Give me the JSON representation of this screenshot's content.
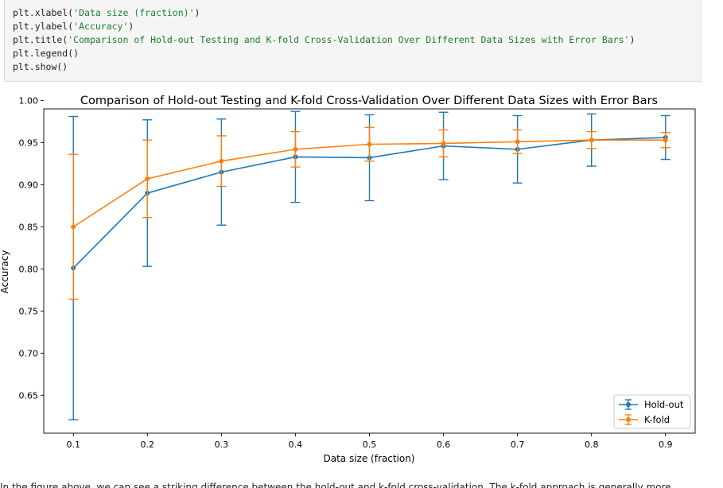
{
  "code": {
    "lines": [
      {
        "prefix": "plt.xlabel(",
        "arg": "'Data size (fraction)'",
        "suffix": ")"
      },
      {
        "prefix": "plt.ylabel(",
        "arg": "'Accuracy'",
        "suffix": ")"
      },
      {
        "prefix": "plt.title(",
        "arg": "'Comparison of Hold-out Testing and K-fold Cross-Validation Over Different Data Sizes with Error Bars'",
        "suffix": ")"
      },
      {
        "prefix": "plt.legend()",
        "arg": "",
        "suffix": ""
      },
      {
        "prefix": "plt.show()",
        "arg": "",
        "suffix": ""
      }
    ]
  },
  "chart_data": {
    "type": "line",
    "title": "Comparison of Hold-out Testing and K-fold Cross-Validation Over Different Data Sizes with Error Bars",
    "xlabel": "Data size (fraction)",
    "ylabel": "Accuracy",
    "x": [
      0.1,
      0.2,
      0.3,
      0.4,
      0.5,
      0.6,
      0.7,
      0.8,
      0.9
    ],
    "xticks": [
      "0.1",
      "0.2",
      "0.3",
      "0.4",
      "0.5",
      "0.6",
      "0.7",
      "0.8",
      "0.9"
    ],
    "yticks": [
      "0.65",
      "0.70",
      "0.75",
      "0.80",
      "0.85",
      "0.90",
      "0.95",
      "1.00"
    ],
    "xlim": [
      0.06,
      0.94
    ],
    "ylim": [
      0.605,
      0.99
    ],
    "grid": false,
    "legend": "lower right",
    "series": [
      {
        "name": "Hold-out",
        "color": "#1f77b4",
        "values": [
          0.801,
          0.89,
          0.915,
          0.933,
          0.932,
          0.946,
          0.942,
          0.953,
          0.956
        ],
        "errors": [
          0.18,
          0.087,
          0.063,
          0.054,
          0.051,
          0.04,
          0.04,
          0.031,
          0.026
        ]
      },
      {
        "name": "K-fold",
        "color": "#ff7f0e",
        "values": [
          0.85,
          0.907,
          0.928,
          0.942,
          0.948,
          0.949,
          0.951,
          0.953,
          0.953
        ],
        "errors": [
          0.086,
          0.046,
          0.03,
          0.021,
          0.02,
          0.016,
          0.014,
          0.01,
          0.009
        ]
      }
    ]
  },
  "footer": {
    "text": "In the figure above, we can see a striking difference between the hold-out and k-fold cross-validation. The k-fold approach is generally more..."
  }
}
